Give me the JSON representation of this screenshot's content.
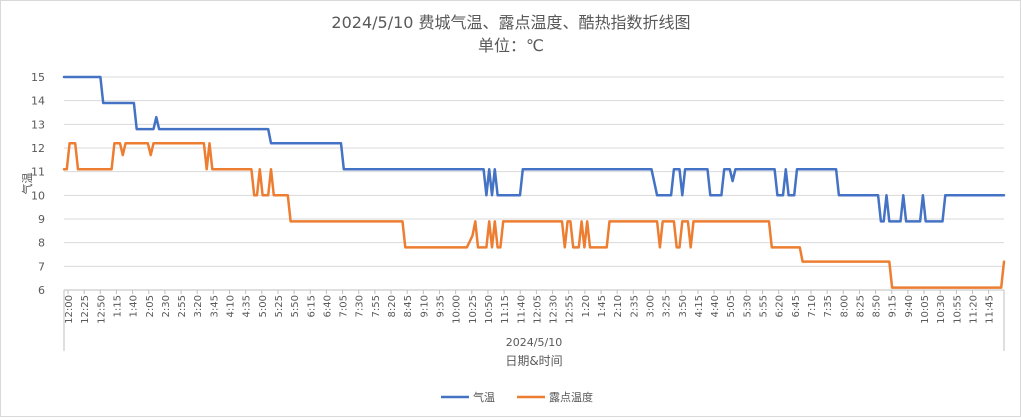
{
  "chart_data": {
    "type": "line",
    "title": "2024/5/10 费城气温、露点温度、酷热指数折线图",
    "subtitle": "单位：℃",
    "xlabel": "日期&时间",
    "x_group_label": "2024/5/10",
    "ylabel": "气温",
    "ylim": [
      6,
      15
    ],
    "yticks": [
      6,
      7,
      8,
      9,
      10,
      11,
      12,
      13,
      14,
      15
    ],
    "grid": "horizontal",
    "legend_position": "bottom",
    "colors": {
      "气温": "#4472C4",
      "露点温度": "#ED7D31"
    },
    "x_tick_labels": [
      "12:00",
      "12:25",
      "12:50",
      "1:15",
      "1:40",
      "2:05",
      "2:30",
      "2:55",
      "3:20",
      "3:45",
      "4:10",
      "4:35",
      "5:00",
      "5:25",
      "5:50",
      "6:15",
      "6:40",
      "7:05",
      "7:30",
      "7:55",
      "8:20",
      "8:45",
      "9:10",
      "9:35",
      "10:00",
      "10:25",
      "10:50",
      "11:15",
      "11:40",
      "12:05",
      "12:30",
      "12:55",
      "1:20",
      "1:45",
      "2:10",
      "2:35",
      "3:00",
      "3:25",
      "3:50",
      "4:15",
      "4:40",
      "5:05",
      "5:30",
      "5:55",
      "6:20",
      "6:45",
      "7:10",
      "7:35",
      "8:00",
      "8:25",
      "8:50",
      "9:15",
      "9:40",
      "10:05",
      "10:30",
      "10:55",
      "11:20",
      "11:45"
    ],
    "series": [
      {
        "name": "气温",
        "points": [
          [
            0,
            15
          ],
          [
            6.5,
            15
          ],
          [
            7,
            13.9
          ],
          [
            12.5,
            13.9
          ],
          [
            13,
            12.8
          ],
          [
            16,
            12.8
          ],
          [
            16.5,
            13.3
          ],
          [
            17,
            12.8
          ],
          [
            36.5,
            12.8
          ],
          [
            37,
            12.2
          ],
          [
            49.5,
            12.2
          ],
          [
            50,
            11.1
          ],
          [
            75,
            11.1
          ],
          [
            75.5,
            10
          ],
          [
            76,
            11.1
          ],
          [
            76.5,
            10
          ],
          [
            77,
            11.1
          ],
          [
            77.5,
            10
          ],
          [
            81.5,
            10
          ],
          [
            82,
            11.1
          ],
          [
            105,
            11.1
          ],
          [
            106,
            10
          ],
          [
            108.5,
            10
          ],
          [
            109,
            11.1
          ],
          [
            110,
            11.1
          ],
          [
            110.5,
            10
          ],
          [
            111,
            11.1
          ],
          [
            115,
            11.1
          ],
          [
            115.5,
            10
          ],
          [
            117.5,
            10
          ],
          [
            118,
            11.1
          ],
          [
            119,
            11.1
          ],
          [
            119.5,
            10.6
          ],
          [
            120,
            11.1
          ],
          [
            127,
            11.1
          ],
          [
            127.5,
            10
          ],
          [
            128.5,
            10
          ],
          [
            129,
            11.1
          ],
          [
            129.5,
            10
          ],
          [
            130.5,
            10
          ],
          [
            131,
            11.1
          ],
          [
            138,
            11.1
          ],
          [
            138.5,
            10
          ],
          [
            145.5,
            10
          ],
          [
            146,
            8.9
          ],
          [
            146.5,
            8.9
          ],
          [
            147,
            10
          ],
          [
            147.5,
            8.9
          ],
          [
            149.5,
            8.9
          ],
          [
            150,
            10
          ],
          [
            150.5,
            8.9
          ],
          [
            153,
            8.9
          ],
          [
            153.5,
            10
          ],
          [
            154,
            8.9
          ],
          [
            157,
            8.9
          ],
          [
            157.5,
            10
          ],
          [
            168,
            10
          ]
        ]
      },
      {
        "name": "露点温度",
        "points": [
          [
            0,
            11.1
          ],
          [
            0.5,
            11.1
          ],
          [
            1,
            12.2
          ],
          [
            2,
            12.2
          ],
          [
            2.5,
            11.1
          ],
          [
            8.5,
            11.1
          ],
          [
            9,
            12.2
          ],
          [
            10,
            12.2
          ],
          [
            10.5,
            11.7
          ],
          [
            11,
            12.2
          ],
          [
            15,
            12.2
          ],
          [
            15.5,
            11.7
          ],
          [
            16,
            12.2
          ],
          [
            25,
            12.2
          ],
          [
            25.5,
            11.1
          ],
          [
            26,
            12.2
          ],
          [
            26.5,
            11.1
          ],
          [
            33.5,
            11.1
          ],
          [
            34,
            10
          ],
          [
            34.5,
            10
          ],
          [
            35,
            11.1
          ],
          [
            35.5,
            10
          ],
          [
            36.5,
            10
          ],
          [
            37,
            11.1
          ],
          [
            37.5,
            10
          ],
          [
            40,
            10
          ],
          [
            40.5,
            8.9
          ],
          [
            60.5,
            8.9
          ],
          [
            61,
            7.8
          ],
          [
            72,
            7.8
          ],
          [
            73,
            8.3
          ],
          [
            73.5,
            8.9
          ],
          [
            74,
            7.8
          ],
          [
            75.5,
            7.8
          ],
          [
            76,
            8.9
          ],
          [
            76.5,
            7.8
          ],
          [
            77,
            8.9
          ],
          [
            77.5,
            7.8
          ],
          [
            78,
            7.8
          ],
          [
            78.5,
            8.9
          ],
          [
            89,
            8.9
          ],
          [
            89.5,
            7.8
          ],
          [
            90,
            8.9
          ],
          [
            90.5,
            8.9
          ],
          [
            91,
            7.8
          ],
          [
            92,
            7.8
          ],
          [
            92.5,
            8.9
          ],
          [
            93,
            7.8
          ],
          [
            93.5,
            8.9
          ],
          [
            94,
            7.8
          ],
          [
            97,
            7.8
          ],
          [
            97.5,
            8.9
          ],
          [
            106,
            8.9
          ],
          [
            106.5,
            7.8
          ],
          [
            107,
            8.9
          ],
          [
            109,
            8.9
          ],
          [
            109.5,
            7.8
          ],
          [
            110,
            7.8
          ],
          [
            110.5,
            8.9
          ],
          [
            111.5,
            8.9
          ],
          [
            112,
            7.8
          ],
          [
            112.5,
            8.9
          ],
          [
            126,
            8.9
          ],
          [
            126.5,
            7.8
          ],
          [
            131.5,
            7.8
          ],
          [
            132,
            7.2
          ],
          [
            147.5,
            7.2
          ],
          [
            148,
            6.1
          ],
          [
            167.5,
            6.1
          ],
          [
            168,
            7.2
          ]
        ]
      }
    ],
    "x_max": 168
  }
}
